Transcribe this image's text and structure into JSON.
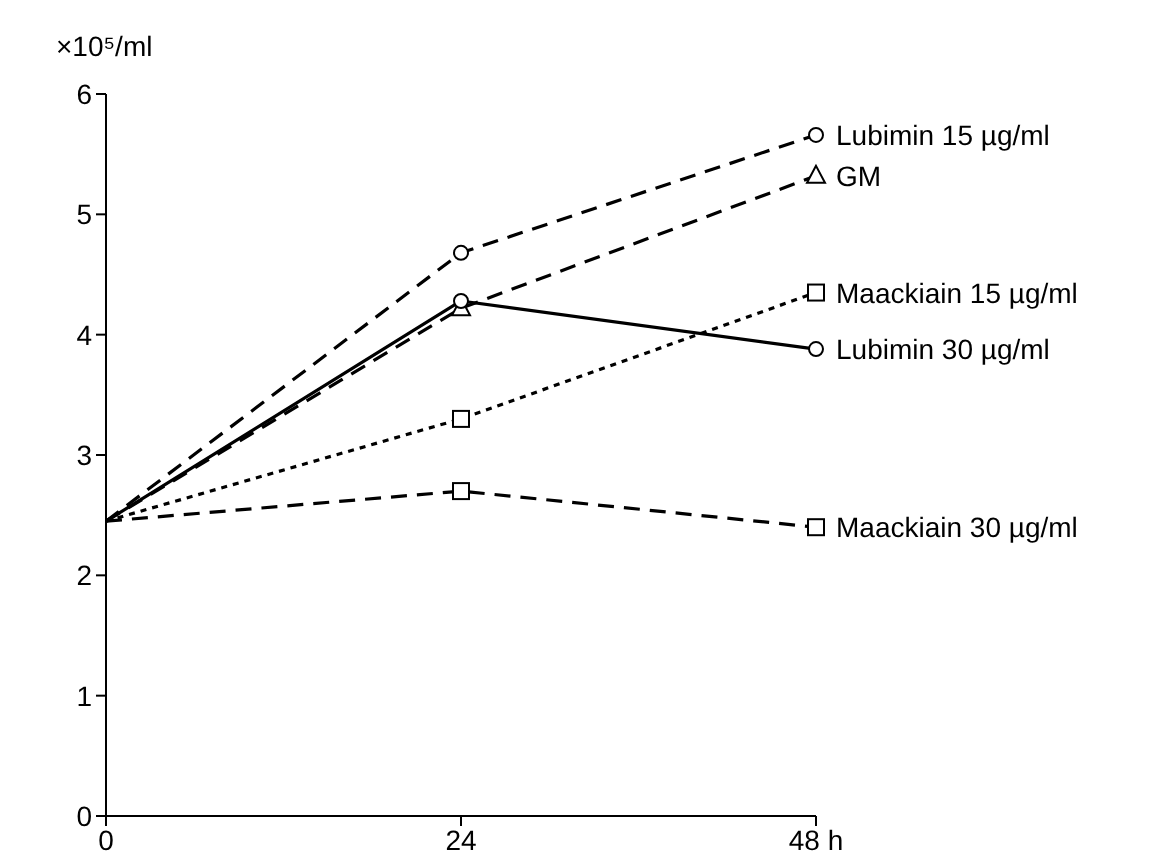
{
  "chart_data": {
    "type": "line",
    "ylabel": "×10⁵/ml",
    "x": [
      0,
      24,
      48
    ],
    "xlim": [
      0,
      48
    ],
    "xticks": [
      0,
      24,
      {
        "value": 48,
        "label": "48 h"
      }
    ],
    "ylim": [
      0,
      6
    ],
    "yticks": [
      0,
      1,
      2,
      3,
      4,
      5,
      6
    ],
    "grid": false,
    "legend": false,
    "series": [
      {
        "name": "Lubimin 15 µg/ml",
        "color": "#000000",
        "values": [
          2.45,
          4.68,
          5.66
        ],
        "marker": "circle",
        "line_style": "dashed"
      },
      {
        "name": "GM",
        "color": "#000000",
        "values": [
          2.45,
          4.22,
          5.32
        ],
        "marker": "triangle",
        "line_style": "dashed"
      },
      {
        "name": "Maackiain 15 µg/ml",
        "color": "#000000",
        "values": [
          2.45,
          3.3,
          4.35
        ],
        "marker": "square",
        "line_style": "dotted"
      },
      {
        "name": "Lubimin 30 µg/ml",
        "color": "#000000",
        "values": [
          2.45,
          4.28,
          3.88
        ],
        "marker": "circle",
        "line_style": "solid"
      },
      {
        "name": "Maackiain 30 µg/ml",
        "color": "#000000",
        "values": [
          2.45,
          2.7,
          2.4
        ],
        "marker": "square",
        "line_style": "dashed"
      }
    ]
  }
}
